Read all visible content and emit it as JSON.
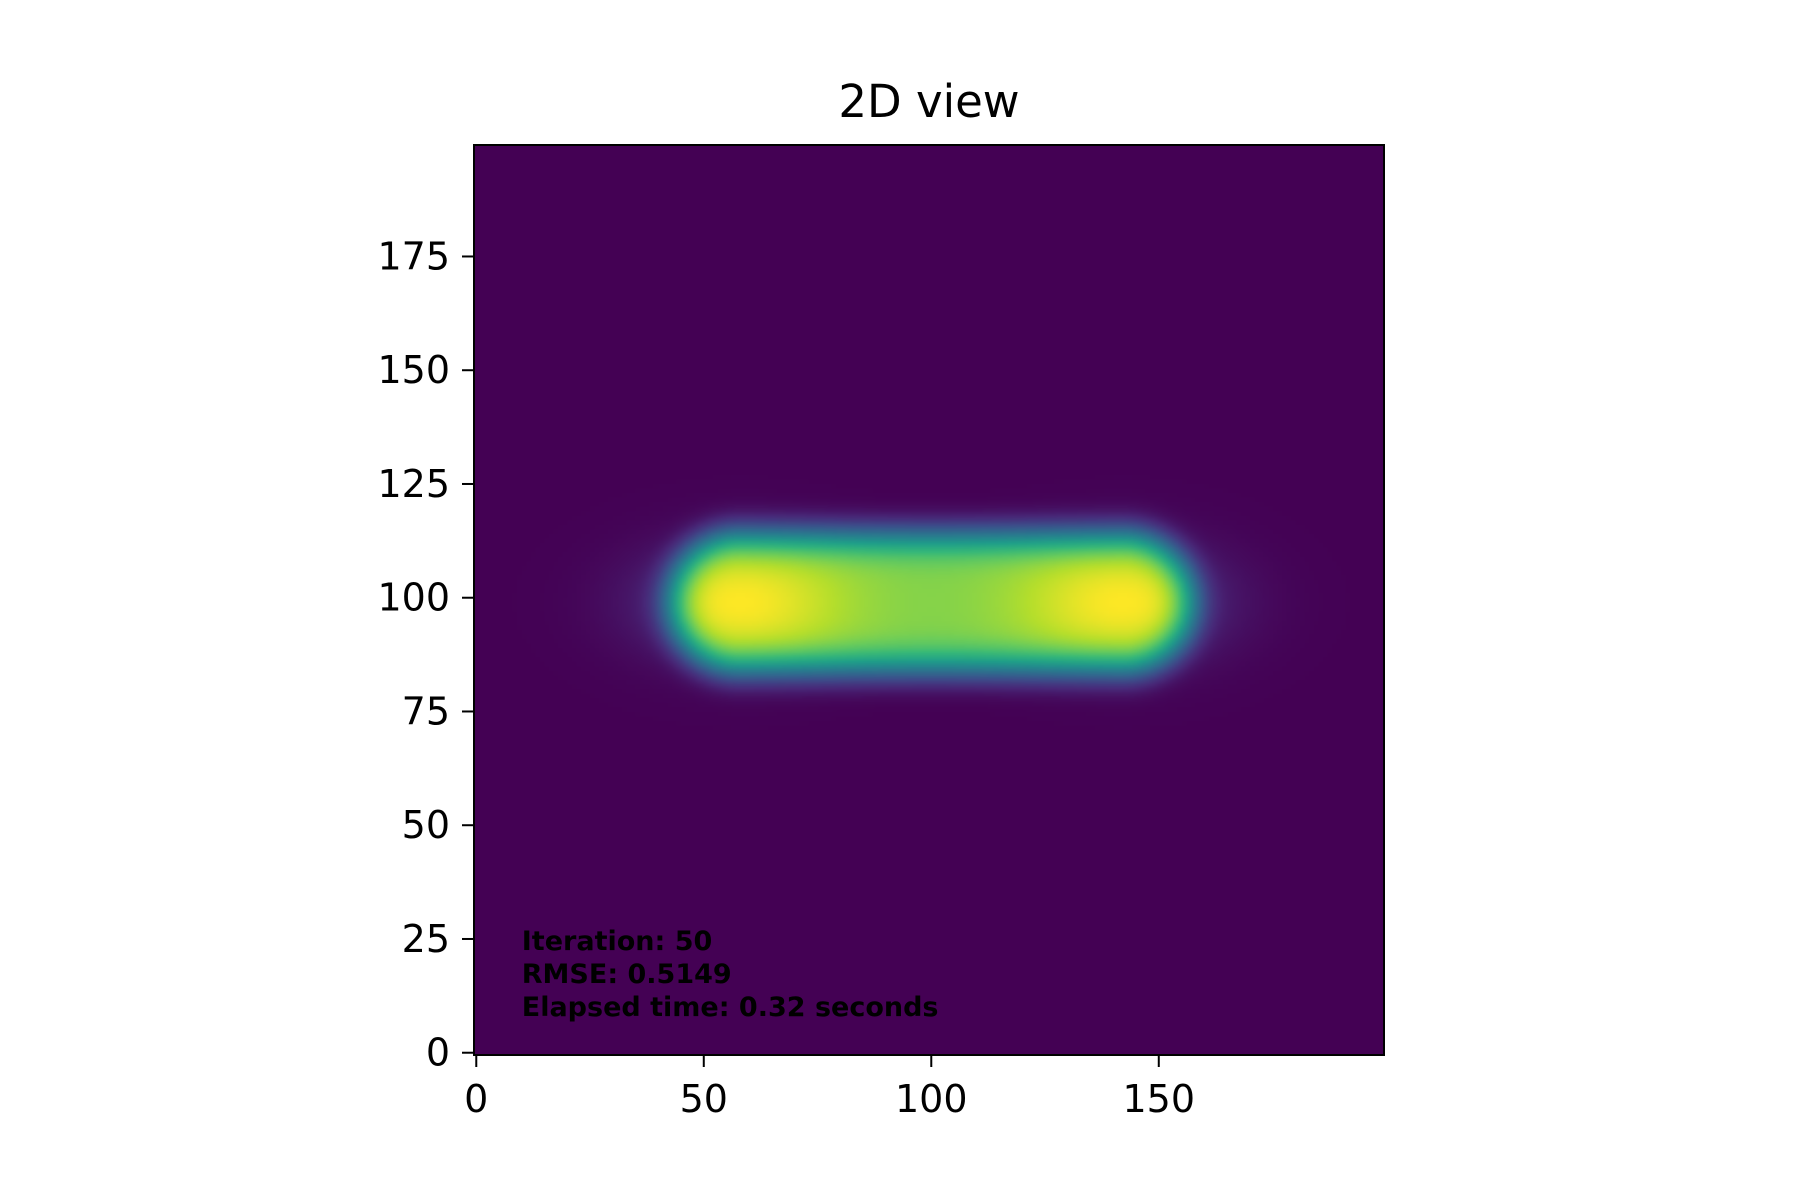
{
  "chart_data": {
    "type": "heatmap",
    "title": "2D view",
    "xlabel": "",
    "ylabel": "",
    "colormap": "viridis",
    "image_size": [
      200,
      200
    ],
    "xlim": [
      -0.5,
      199.5
    ],
    "ylim": [
      199.5,
      -0.5
    ],
    "x_ticks": [
      0,
      50,
      100,
      150
    ],
    "y_ticks": [
      0,
      25,
      50,
      75,
      100,
      125,
      150,
      175
    ],
    "x_tick_labels": [
      "0",
      "50",
      "100",
      "150"
    ],
    "y_tick_labels": [
      "0",
      "25",
      "50",
      "75",
      "100",
      "125",
      "150",
      "175"
    ],
    "grid": false,
    "legend": "none",
    "peaks": [
      {
        "x": 58,
        "y": 100
      },
      {
        "x": 142,
        "y": 100
      }
    ],
    "annotation_lines": [
      "Iteration: 50",
      "RMSE: 0.5149",
      "Elapsed time: 0.32 seconds"
    ],
    "annotation_position": [
      10,
      23
    ]
  }
}
